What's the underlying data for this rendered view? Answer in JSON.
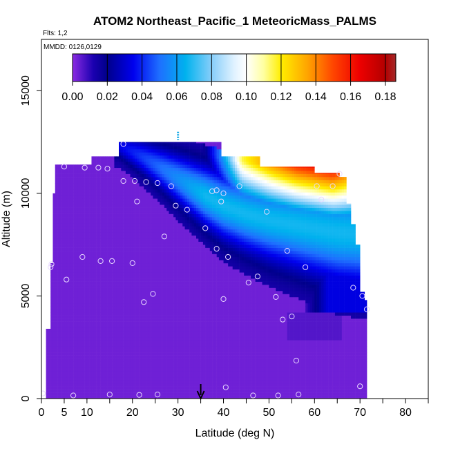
{
  "chart_data": {
    "type": "heatmap",
    "title": "ATOM2 Northeast_Pacific_1 MeteoricMass_PALMS",
    "subtitle_flights": "Flts: 1,2",
    "subtitle_dates": "MMDD: 0126,0129",
    "xlabel": "Latitude (deg N)",
    "ylabel": "Altitude (m)",
    "xlim": [
      0,
      85
    ],
    "ylim": [
      0,
      17500
    ],
    "x_ticks": [
      0,
      5,
      10,
      20,
      30,
      40,
      50,
      60,
      70,
      80
    ],
    "x_tick_labels": [
      "0",
      "5",
      "10",
      "20",
      "30",
      "40",
      "50",
      "60",
      "70",
      "80"
    ],
    "x_minor_ticks": [
      15,
      25,
      35,
      45,
      55,
      65,
      75,
      85
    ],
    "y_ticks": [
      0,
      5000,
      10000,
      15000
    ],
    "y_tick_labels": [
      "0",
      "5000",
      "10000",
      "15000"
    ],
    "colorbar": {
      "range": [
        0,
        0.186
      ],
      "ticks": [
        0.0,
        0.02,
        0.04,
        0.06,
        0.08,
        0.1,
        0.12,
        0.14,
        0.16,
        0.18
      ],
      "tick_labels": [
        "0.00",
        "0.02",
        "0.04",
        "0.06",
        "0.08",
        "0.10",
        "0.12",
        "0.14",
        "0.16",
        "0.18"
      ],
      "stops": [
        {
          "v": 0.0,
          "c": "#8b2be2"
        },
        {
          "v": 0.012,
          "c": "#1a00b0"
        },
        {
          "v": 0.02,
          "c": "#00008b"
        },
        {
          "v": 0.035,
          "c": "#0000ee"
        },
        {
          "v": 0.05,
          "c": "#1e6fff"
        },
        {
          "v": 0.065,
          "c": "#00b2ee"
        },
        {
          "v": 0.08,
          "c": "#87cefa"
        },
        {
          "v": 0.093,
          "c": "#e0f2ff"
        },
        {
          "v": 0.1,
          "c": "#ffffff"
        },
        {
          "v": 0.11,
          "c": "#ffffa0"
        },
        {
          "v": 0.12,
          "c": "#ffee00"
        },
        {
          "v": 0.135,
          "c": "#ffa500"
        },
        {
          "v": 0.15,
          "c": "#ff4500"
        },
        {
          "v": 0.165,
          "c": "#ee0000"
        },
        {
          "v": 0.18,
          "c": "#b20000"
        },
        {
          "v": 0.186,
          "c": "#a52a2a"
        }
      ]
    },
    "background_value": 0.003,
    "coverage_columns": [
      {
        "x": [
          0.8,
          2.0
        ],
        "top": 3400
      },
      {
        "x": [
          2.0,
          2.5
        ],
        "top": 6600
      },
      {
        "x": [
          2.5,
          3.2
        ],
        "top": 10000
      },
      {
        "x": [
          3.2,
          4.0
        ],
        "top": 11400
      },
      {
        "x": [
          4.0,
          11.0
        ],
        "top": 11400
      },
      {
        "x": [
          11.0,
          17.0
        ],
        "top": 11800
      },
      {
        "x": [
          17.0,
          20.0
        ],
        "top": 12500
      },
      {
        "x": [
          20.0,
          28.0
        ],
        "top": 12500
      },
      {
        "x": [
          28.0,
          34.0
        ],
        "top": 12500
      },
      {
        "x": [
          34.0,
          39.5
        ],
        "top": 12500
      },
      {
        "x": [
          39.5,
          48.0
        ],
        "top": 11800
      },
      {
        "x": [
          48.0,
          57.0
        ],
        "top": 11300
      },
      {
        "x": [
          57.0,
          60.0
        ],
        "top": 11300
      },
      {
        "x": [
          60.0,
          65.5
        ],
        "top": 11000
      },
      {
        "x": [
          65.5,
          67.0
        ],
        "top": 10800
      },
      {
        "x": [
          67.0,
          68.0
        ],
        "top": 9500
      },
      {
        "x": [
          68.0,
          69.0
        ],
        "top": 8500
      },
      {
        "x": [
          69.0,
          70.0
        ],
        "top": 7500
      },
      {
        "x": [
          70.0,
          70.8
        ],
        "top": 5200
      },
      {
        "x": [
          70.8,
          71.5
        ],
        "top": 4800
      }
    ],
    "plume_profile": [
      {
        "lat": 17,
        "alt": 12350,
        "w": 400
      },
      {
        "lat": 22,
        "alt": 11800,
        "w": 550
      },
      {
        "lat": 27,
        "alt": 11150,
        "w": 700
      },
      {
        "lat": 32,
        "alt": 10450,
        "w": 850
      },
      {
        "lat": 36,
        "alt": 9900,
        "w": 950
      },
      {
        "lat": 40,
        "alt": 9400,
        "w": 1050
      },
      {
        "lat": 45,
        "alt": 9000,
        "w": 1150
      },
      {
        "lat": 50,
        "alt": 8700,
        "w": 1250
      },
      {
        "lat": 55,
        "alt": 8500,
        "w": 1350
      },
      {
        "lat": 60,
        "alt": 8300,
        "w": 1450
      },
      {
        "lat": 65,
        "alt": 8100,
        "w": 1550
      },
      {
        "lat": 72,
        "alt": 8000,
        "w": 1600
      }
    ],
    "upper_plume": [
      {
        "lat": 40,
        "alt_top": 11700,
        "v": 0.1
      },
      {
        "lat": 48,
        "alt_top": 11300,
        "v": 0.13
      },
      {
        "lat": 56,
        "alt_top": 10900,
        "v": 0.16
      },
      {
        "lat": 64,
        "alt_top": 10700,
        "v": 0.175
      },
      {
        "lat": 68,
        "alt_top": 9500,
        "v": 0.16
      }
    ],
    "lower_blue_band": {
      "alt_top": 6700,
      "alt_bottom": 4200,
      "lat_start": 58,
      "lat_end": 71,
      "v": 0.025
    },
    "sample_points": [
      {
        "lat": 0.3,
        "alt": 250
      },
      {
        "lat": 7,
        "alt": 150
      },
      {
        "lat": 15,
        "alt": 200
      },
      {
        "lat": 21.5,
        "alt": 180
      },
      {
        "lat": 25.5,
        "alt": 200
      },
      {
        "lat": 40.5,
        "alt": 550
      },
      {
        "lat": 46.5,
        "alt": 150
      },
      {
        "lat": 52,
        "alt": 150
      },
      {
        "lat": 56.5,
        "alt": 200
      },
      {
        "lat": 70,
        "alt": 600
      },
      {
        "lat": 56,
        "alt": 1850
      },
      {
        "lat": 53,
        "alt": 3850
      },
      {
        "lat": 55,
        "alt": 4000
      },
      {
        "lat": 71.5,
        "alt": 4350
      },
      {
        "lat": 40,
        "alt": 4850
      },
      {
        "lat": 51.5,
        "alt": 4950
      },
      {
        "lat": 22.5,
        "alt": 4700
      },
      {
        "lat": 24.5,
        "alt": 5100
      },
      {
        "lat": 70.5,
        "alt": 5000
      },
      {
        "lat": 68.5,
        "alt": 5400
      },
      {
        "lat": 45.5,
        "alt": 5650
      },
      {
        "lat": 47.5,
        "alt": 5950
      },
      {
        "lat": 5.5,
        "alt": 5800
      },
      {
        "lat": 2,
        "alt": 6400
      },
      {
        "lat": 2.2,
        "alt": 6550
      },
      {
        "lat": 9,
        "alt": 6900
      },
      {
        "lat": 13,
        "alt": 6700
      },
      {
        "lat": 15.5,
        "alt": 6700
      },
      {
        "lat": 20,
        "alt": 6600
      },
      {
        "lat": 41,
        "alt": 6900
      },
      {
        "lat": 38.5,
        "alt": 7300
      },
      {
        "lat": 58,
        "alt": 6400
      },
      {
        "lat": 54,
        "alt": 7200
      },
      {
        "lat": 27,
        "alt": 7900
      },
      {
        "lat": 36,
        "alt": 8300
      },
      {
        "lat": 29.5,
        "alt": 9400
      },
      {
        "lat": 32,
        "alt": 9200
      },
      {
        "lat": 39.5,
        "alt": 9600
      },
      {
        "lat": 49.5,
        "alt": 9100
      },
      {
        "lat": 21,
        "alt": 9600
      },
      {
        "lat": 18,
        "alt": 10600
      },
      {
        "lat": 20.5,
        "alt": 10600
      },
      {
        "lat": 23,
        "alt": 10550
      },
      {
        "lat": 25.5,
        "alt": 10500
      },
      {
        "lat": 28.5,
        "alt": 10350
      },
      {
        "lat": 37.5,
        "alt": 10100
      },
      {
        "lat": 38.5,
        "alt": 10150
      },
      {
        "lat": 40,
        "alt": 10000
      },
      {
        "lat": 43.5,
        "alt": 10350
      },
      {
        "lat": 60.5,
        "alt": 10350
      },
      {
        "lat": 61.5,
        "alt": 9700
      },
      {
        "lat": 64,
        "alt": 10350
      },
      {
        "lat": 65.5,
        "alt": 10950
      },
      {
        "lat": 5,
        "alt": 11300
      },
      {
        "lat": 9.5,
        "alt": 11250
      },
      {
        "lat": 12.5,
        "alt": 11250
      },
      {
        "lat": 14.5,
        "alt": 11200
      },
      {
        "lat": 18,
        "alt": 12400
      }
    ],
    "marker_latitude": 35,
    "cyan_dash": {
      "lat": 30,
      "alt_start": 12600,
      "alt_end": 13000,
      "color": "#17a9e6"
    }
  }
}
